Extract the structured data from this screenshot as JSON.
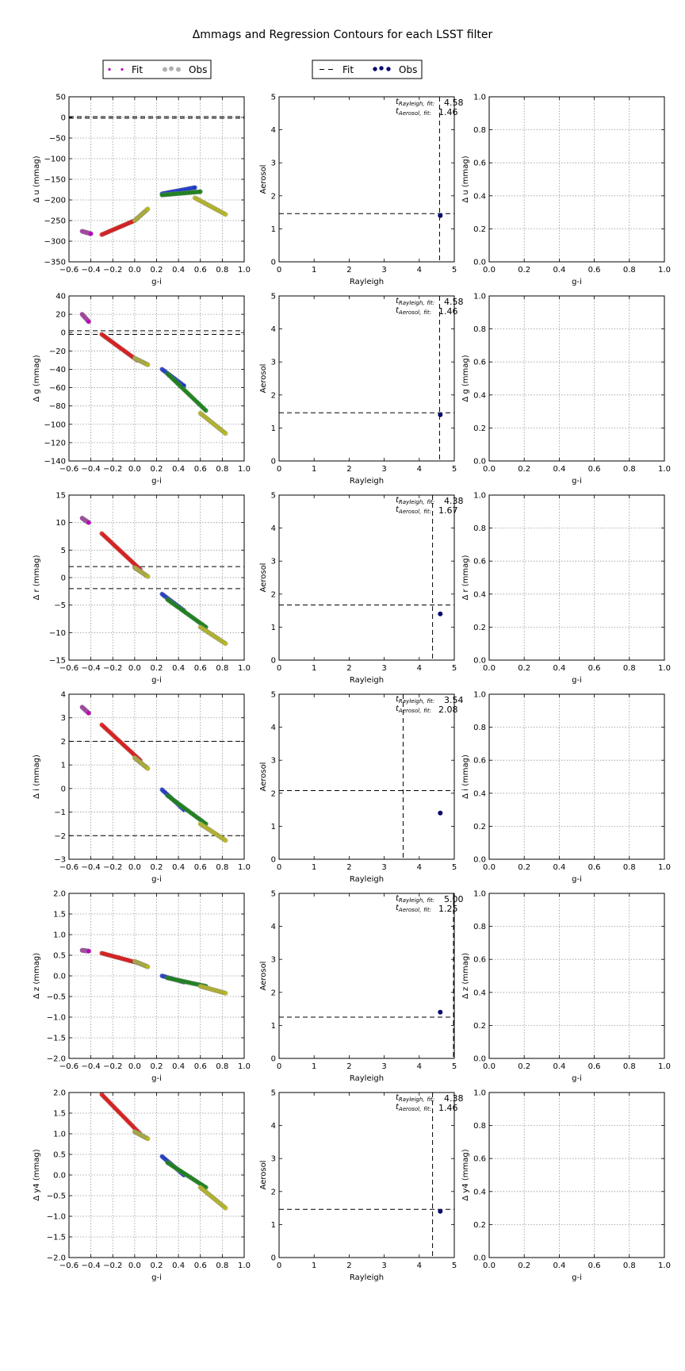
{
  "figure": {
    "title": "Δmmags and Regression Contours for each LSST filter",
    "legend_left": {
      "fit": "Fit",
      "obs": "Obs"
    },
    "legend_mid": {
      "fit": "Fit",
      "obs": "Obs"
    }
  },
  "colors": {
    "magenta": "#c000c0",
    "red": "#e01010",
    "yellow": "#b8b820",
    "blue": "#1030d0",
    "green": "#108010",
    "navy": "#0a0a6e",
    "obs_gray": "#b0b0b0"
  },
  "chart_data": [
    {
      "type": "scatter",
      "col": 0,
      "row": 0,
      "xlabel": "g-i",
      "ylabel": "Δ u (mmag)",
      "xlim": [
        -0.6,
        1.0
      ],
      "ylim": [
        -350,
        50
      ],
      "xticks": [
        "−0.6",
        "−0.4",
        "−0.2",
        "0.0",
        "0.2",
        "0.4",
        "0.6",
        "0.8",
        "1.0"
      ],
      "yticks": [
        "50",
        "0",
        "−50",
        "−100",
        "−150",
        "−200",
        "−250",
        "−300",
        "−350"
      ],
      "hlines": [
        2,
        -2
      ],
      "grid": true,
      "clusters": [
        {
          "color": "magenta",
          "x": [
            -0.48,
            -0.4
          ],
          "y": [
            -276,
            -282
          ]
        },
        {
          "color": "red",
          "x": [
            -0.3,
            0.0
          ],
          "y": [
            -284,
            -250
          ]
        },
        {
          "color": "yellow",
          "x": [
            0.0,
            0.12
          ],
          "y": [
            -250,
            -222
          ]
        },
        {
          "color": "blue",
          "x": [
            0.25,
            0.55
          ],
          "y": [
            -185,
            -170
          ]
        },
        {
          "color": "green",
          "x": [
            0.25,
            0.6
          ],
          "y": [
            -188,
            -180
          ]
        },
        {
          "color": "yellow",
          "x": [
            0.55,
            0.83
          ],
          "y": [
            -195,
            -235
          ]
        }
      ]
    },
    {
      "type": "scatter",
      "col": 1,
      "row": 0,
      "xlabel": "Rayleigh",
      "ylabel": "Aerosol",
      "xlim": [
        0,
        5
      ],
      "ylim": [
        0,
        5
      ],
      "xticks": [
        "0",
        "1",
        "2",
        "3",
        "4",
        "5"
      ],
      "yticks": [
        "5",
        "4",
        "3",
        "2",
        "1",
        "0"
      ],
      "fit_x": 4.58,
      "fit_y": 1.46,
      "obs_point": [
        4.6,
        1.4
      ],
      "ann_rayleigh": "4.58",
      "ann_aerosol": "1.46",
      "grid": false
    },
    {
      "type": "scatter",
      "col": 2,
      "row": 0,
      "xlabel": "g-i",
      "ylabel": "Δ u (mmag)",
      "xlim": [
        0,
        1
      ],
      "ylim": [
        0,
        1
      ],
      "xticks": [
        "0.0",
        "0.2",
        "0.4",
        "0.6",
        "0.8",
        "1.0"
      ],
      "yticks": [
        "1.0",
        "0.8",
        "0.6",
        "0.4",
        "0.2",
        "0.0"
      ],
      "grid": true
    },
    {
      "type": "scatter",
      "col": 0,
      "row": 1,
      "xlabel": "g-i",
      "ylabel": "Δ g (mmag)",
      "xlim": [
        -0.6,
        1.0
      ],
      "ylim": [
        -140,
        40
      ],
      "xticks": [
        "−0.6",
        "−0.4",
        "−0.2",
        "0.0",
        "0.2",
        "0.4",
        "0.6",
        "0.8",
        "1.0"
      ],
      "yticks": [
        "40",
        "20",
        "0",
        "−20",
        "−40",
        "−60",
        "−80",
        "−100",
        "−120",
        "−140"
      ],
      "hlines": [
        2,
        -2
      ],
      "grid": true,
      "clusters": [
        {
          "color": "magenta",
          "x": [
            -0.48,
            -0.42
          ],
          "y": [
            20,
            12
          ]
        },
        {
          "color": "red",
          "x": [
            -0.3,
            0.02
          ],
          "y": [
            -2,
            -30
          ]
        },
        {
          "color": "yellow",
          "x": [
            0.0,
            0.12
          ],
          "y": [
            -28,
            -35
          ]
        },
        {
          "color": "blue",
          "x": [
            0.25,
            0.45
          ],
          "y": [
            -40,
            -58
          ]
        },
        {
          "color": "green",
          "x": [
            0.3,
            0.65
          ],
          "y": [
            -45,
            -85
          ]
        },
        {
          "color": "yellow",
          "x": [
            0.6,
            0.83
          ],
          "y": [
            -88,
            -110
          ]
        }
      ]
    },
    {
      "type": "scatter",
      "col": 1,
      "row": 1,
      "xlabel": "Rayleigh",
      "ylabel": "Aerosol",
      "xlim": [
        0,
        5
      ],
      "ylim": [
        0,
        5
      ],
      "xticks": [
        "0",
        "1",
        "2",
        "3",
        "4",
        "5"
      ],
      "yticks": [
        "5",
        "4",
        "3",
        "2",
        "1",
        "0"
      ],
      "fit_x": 4.58,
      "fit_y": 1.46,
      "obs_point": [
        4.6,
        1.4
      ],
      "ann_rayleigh": "4.58",
      "ann_aerosol": "1.46",
      "grid": false
    },
    {
      "type": "scatter",
      "col": 2,
      "row": 1,
      "xlabel": "g-i",
      "ylabel": "Δ g (mmag)",
      "xlim": [
        0,
        1
      ],
      "ylim": [
        0,
        1
      ],
      "xticks": [
        "0.0",
        "0.2",
        "0.4",
        "0.6",
        "0.8",
        "1.0"
      ],
      "yticks": [
        "1.0",
        "0.8",
        "0.6",
        "0.4",
        "0.2",
        "0.0"
      ],
      "grid": true
    },
    {
      "type": "scatter",
      "col": 0,
      "row": 2,
      "xlabel": "g-i",
      "ylabel": "Δ r (mmag)",
      "xlim": [
        -0.6,
        1.0
      ],
      "ylim": [
        -15,
        15
      ],
      "xticks": [
        "−0.6",
        "−0.4",
        "−0.2",
        "0.0",
        "0.2",
        "0.4",
        "0.6",
        "0.8",
        "1.0"
      ],
      "yticks": [
        "15",
        "10",
        "5",
        "0",
        "−5",
        "−10",
        "−15"
      ],
      "hlines": [
        2,
        -2
      ],
      "grid": true,
      "clusters": [
        {
          "color": "magenta",
          "x": [
            -0.48,
            -0.42
          ],
          "y": [
            10.8,
            10.0
          ]
        },
        {
          "color": "red",
          "x": [
            -0.3,
            0.05
          ],
          "y": [
            8.0,
            1.5
          ]
        },
        {
          "color": "yellow",
          "x": [
            0.0,
            0.12
          ],
          "y": [
            1.8,
            0.2
          ]
        },
        {
          "color": "blue",
          "x": [
            0.25,
            0.45
          ],
          "y": [
            -3.0,
            -6.0
          ]
        },
        {
          "color": "green",
          "x": [
            0.3,
            0.65
          ],
          "y": [
            -4.0,
            -9.0
          ]
        },
        {
          "color": "yellow",
          "x": [
            0.6,
            0.83
          ],
          "y": [
            -9.0,
            -12.0
          ]
        }
      ]
    },
    {
      "type": "scatter",
      "col": 1,
      "row": 2,
      "xlabel": "Rayleigh",
      "ylabel": "Aerosol",
      "xlim": [
        0,
        5
      ],
      "ylim": [
        0,
        5
      ],
      "xticks": [
        "0",
        "1",
        "2",
        "3",
        "4",
        "5"
      ],
      "yticks": [
        "5",
        "4",
        "3",
        "2",
        "1",
        "0"
      ],
      "fit_x": 4.38,
      "fit_y": 1.67,
      "obs_point": [
        4.6,
        1.4
      ],
      "ann_rayleigh": "4.38",
      "ann_aerosol": "1.67",
      "grid": false
    },
    {
      "type": "scatter",
      "col": 2,
      "row": 2,
      "xlabel": "g-i",
      "ylabel": "Δ r (mmag)",
      "xlim": [
        0,
        1
      ],
      "ylim": [
        0,
        1
      ],
      "xticks": [
        "0.0",
        "0.2",
        "0.4",
        "0.6",
        "0.8",
        "1.0"
      ],
      "yticks": [
        "1.0",
        "0.8",
        "0.6",
        "0.4",
        "0.2",
        "0.0"
      ],
      "grid": true
    },
    {
      "type": "scatter",
      "col": 0,
      "row": 3,
      "xlabel": "g-i",
      "ylabel": "Δ i (mmag)",
      "xlim": [
        -0.6,
        1.0
      ],
      "ylim": [
        -3,
        4
      ],
      "xticks": [
        "−0.6",
        "−0.4",
        "−0.2",
        "0.0",
        "0.2",
        "0.4",
        "0.6",
        "0.8",
        "1.0"
      ],
      "yticks": [
        "4",
        "3",
        "2",
        "1",
        "0",
        "−1",
        "−2",
        "−3"
      ],
      "hlines": [
        2,
        -2
      ],
      "grid": true,
      "clusters": [
        {
          "color": "magenta",
          "x": [
            -0.48,
            -0.42
          ],
          "y": [
            3.45,
            3.2
          ]
        },
        {
          "color": "red",
          "x": [
            -0.3,
            0.05
          ],
          "y": [
            2.7,
            1.2
          ]
        },
        {
          "color": "yellow",
          "x": [
            0.0,
            0.12
          ],
          "y": [
            1.3,
            0.85
          ]
        },
        {
          "color": "blue",
          "x": [
            0.25,
            0.45
          ],
          "y": [
            -0.05,
            -0.9
          ]
        },
        {
          "color": "green",
          "x": [
            0.3,
            0.65
          ],
          "y": [
            -0.3,
            -1.5
          ]
        },
        {
          "color": "yellow",
          "x": [
            0.6,
            0.83
          ],
          "y": [
            -1.5,
            -2.2
          ]
        }
      ]
    },
    {
      "type": "scatter",
      "col": 1,
      "row": 3,
      "xlabel": "Rayleigh",
      "ylabel": "Aerosol",
      "xlim": [
        0,
        5
      ],
      "ylim": [
        0,
        5
      ],
      "xticks": [
        "0",
        "1",
        "2",
        "3",
        "4",
        "5"
      ],
      "yticks": [
        "5",
        "4",
        "3",
        "2",
        "1",
        "0"
      ],
      "fit_x": 3.54,
      "fit_y": 2.08,
      "obs_point": [
        4.6,
        1.4
      ],
      "ann_rayleigh": "3.54",
      "ann_aerosol": "2.08",
      "grid": false
    },
    {
      "type": "scatter",
      "col": 2,
      "row": 3,
      "xlabel": "g-i",
      "ylabel": "Δ i (mmag)",
      "xlim": [
        0,
        1
      ],
      "ylim": [
        0,
        1
      ],
      "xticks": [
        "0.0",
        "0.2",
        "0.4",
        "0.6",
        "0.8",
        "1.0"
      ],
      "yticks": [
        "1.0",
        "0.8",
        "0.6",
        "0.4",
        "0.2",
        "0.0"
      ],
      "grid": true
    },
    {
      "type": "scatter",
      "col": 0,
      "row": 4,
      "xlabel": "g-i",
      "ylabel": "Δ z (mmag)",
      "xlim": [
        -0.6,
        1.0
      ],
      "ylim": [
        -2.0,
        2.0
      ],
      "xticks": [
        "−0.6",
        "−0.4",
        "−0.2",
        "0.0",
        "0.2",
        "0.4",
        "0.6",
        "0.8",
        "1.0"
      ],
      "yticks": [
        "2.0",
        "1.5",
        "1.0",
        "0.5",
        "0.0",
        "−0.5",
        "−1.0",
        "−1.5",
        "−2.0"
      ],
      "hlines": [],
      "grid": true,
      "clusters": [
        {
          "color": "magenta",
          "x": [
            -0.48,
            -0.42
          ],
          "y": [
            0.62,
            0.6
          ]
        },
        {
          "color": "red",
          "x": [
            -0.3,
            0.05
          ],
          "y": [
            0.55,
            0.3
          ]
        },
        {
          "color": "yellow",
          "x": [
            0.0,
            0.12
          ],
          "y": [
            0.35,
            0.22
          ]
        },
        {
          "color": "blue",
          "x": [
            0.25,
            0.45
          ],
          "y": [
            0.0,
            -0.15
          ]
        },
        {
          "color": "green",
          "x": [
            0.3,
            0.65
          ],
          "y": [
            -0.05,
            -0.25
          ]
        },
        {
          "color": "yellow",
          "x": [
            0.6,
            0.83
          ],
          "y": [
            -0.25,
            -0.42
          ]
        }
      ]
    },
    {
      "type": "scatter",
      "col": 1,
      "row": 4,
      "xlabel": "Rayleigh",
      "ylabel": "Aerosol",
      "xlim": [
        0,
        5
      ],
      "ylim": [
        0,
        5
      ],
      "xticks": [
        "0",
        "1",
        "2",
        "3",
        "4",
        "5"
      ],
      "yticks": [
        "5",
        "4",
        "3",
        "2",
        "1",
        "0"
      ],
      "fit_x": 5.0,
      "fit_y": 1.25,
      "obs_point": [
        4.6,
        1.4
      ],
      "ann_rayleigh": "5.00",
      "ann_aerosol": "1.25",
      "grid": false
    },
    {
      "type": "scatter",
      "col": 2,
      "row": 4,
      "xlabel": "g-i",
      "ylabel": "Δ z (mmag)",
      "xlim": [
        0,
        1
      ],
      "ylim": [
        0,
        1
      ],
      "xticks": [
        "0.0",
        "0.2",
        "0.4",
        "0.6",
        "0.8",
        "1.0"
      ],
      "yticks": [
        "1.0",
        "0.8",
        "0.6",
        "0.4",
        "0.2",
        "0.0"
      ],
      "grid": true
    },
    {
      "type": "scatter",
      "col": 0,
      "row": 5,
      "xlabel": "g-i",
      "ylabel": "Δ y4 (mmag)",
      "xlim": [
        -0.6,
        1.0
      ],
      "ylim": [
        -2.0,
        2.0
      ],
      "xticks": [
        "−0.6",
        "−0.4",
        "−0.2",
        "0.0",
        "0.2",
        "0.4",
        "0.6",
        "0.8",
        "1.0"
      ],
      "yticks": [
        "2.0",
        "1.5",
        "1.0",
        "0.5",
        "0.0",
        "−0.5",
        "−1.0",
        "−1.5",
        "−2.0"
      ],
      "hlines": [],
      "grid": true,
      "clusters": [
        {
          "color": "red",
          "x": [
            -0.3,
            0.05
          ],
          "y": [
            1.95,
            1.0
          ]
        },
        {
          "color": "yellow",
          "x": [
            0.0,
            0.12
          ],
          "y": [
            1.05,
            0.88
          ]
        },
        {
          "color": "blue",
          "x": [
            0.25,
            0.45
          ],
          "y": [
            0.45,
            0.0
          ]
        },
        {
          "color": "green",
          "x": [
            0.3,
            0.65
          ],
          "y": [
            0.3,
            -0.3
          ]
        },
        {
          "color": "yellow",
          "x": [
            0.6,
            0.83
          ],
          "y": [
            -0.3,
            -0.8
          ]
        }
      ]
    },
    {
      "type": "scatter",
      "col": 1,
      "row": 5,
      "xlabel": "Rayleigh",
      "ylabel": "Aerosol",
      "xlim": [
        0,
        5
      ],
      "ylim": [
        0,
        5
      ],
      "xticks": [
        "0",
        "1",
        "2",
        "3",
        "4",
        "5"
      ],
      "yticks": [
        "5",
        "4",
        "3",
        "2",
        "1",
        "0"
      ],
      "fit_x": 4.38,
      "fit_y": 1.46,
      "obs_point": [
        4.6,
        1.4
      ],
      "ann_rayleigh": "4.38",
      "ann_aerosol": "1.46",
      "grid": false
    },
    {
      "type": "scatter",
      "col": 2,
      "row": 5,
      "xlabel": "g-i",
      "ylabel": "Δ y4 (mmag)",
      "xlim": [
        0,
        1
      ],
      "ylim": [
        0,
        1
      ],
      "xticks": [
        "0.0",
        "0.2",
        "0.4",
        "0.6",
        "0.8",
        "1.0"
      ],
      "yticks": [
        "1.0",
        "0.8",
        "0.6",
        "0.4",
        "0.2",
        "0.0"
      ],
      "grid": true
    }
  ]
}
